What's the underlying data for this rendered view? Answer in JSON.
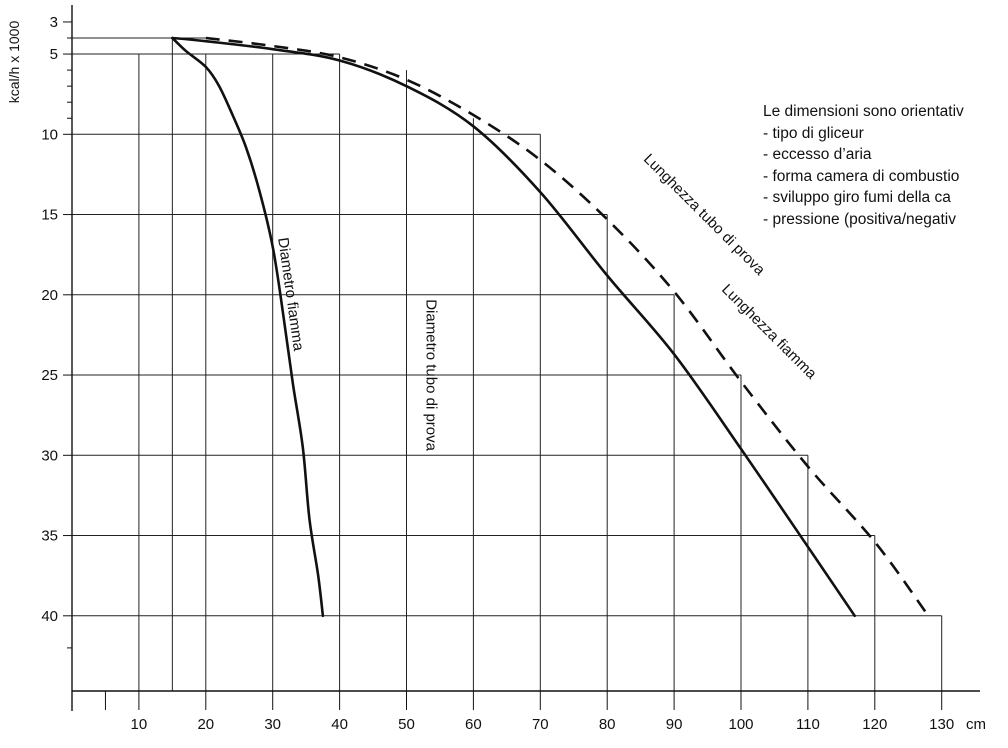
{
  "chart_data": {
    "type": "line",
    "title": "",
    "xlabel": "cm",
    "ylabel": "kcal/h x 1000",
    "xlim": [
      0,
      140
    ],
    "ylim": [
      42,
      3
    ],
    "x_ticks": [
      10,
      20,
      30,
      40,
      50,
      60,
      70,
      80,
      90,
      100,
      110,
      120,
      130
    ],
    "y_ticks": [
      3,
      5,
      10,
      15,
      20,
      25,
      30,
      35,
      40
    ],
    "y_minor_ticks": [
      4,
      6,
      7,
      8,
      9
    ],
    "grid": "stepped rectangles",
    "series": [
      {
        "name": "Diametro fiamma",
        "style": "solid",
        "points": [
          [
            15,
            4
          ],
          [
            17,
            4.8
          ],
          [
            20,
            5.8
          ],
          [
            22,
            7
          ],
          [
            24,
            8.8
          ],
          [
            26,
            10.8
          ],
          [
            28,
            13.5
          ],
          [
            30,
            17
          ],
          [
            31.5,
            21
          ],
          [
            33,
            25.5
          ],
          [
            34.5,
            29.5
          ],
          [
            35.5,
            34
          ],
          [
            36.8,
            37.5
          ],
          [
            37.5,
            40
          ]
        ]
      },
      {
        "name": "Lunghezza fiamma",
        "style": "solid",
        "points": [
          [
            15,
            4
          ],
          [
            20,
            4.2
          ],
          [
            30,
            4.7
          ],
          [
            40,
            5.4
          ],
          [
            50,
            7
          ],
          [
            60,
            9.5
          ],
          [
            70,
            13.6
          ],
          [
            80,
            18.8
          ],
          [
            90,
            23.7
          ],
          [
            100,
            29.6
          ],
          [
            110,
            35.7
          ],
          [
            117,
            40
          ]
        ]
      },
      {
        "name": "Lunghezza tubo di prova",
        "style": "dashed",
        "points": [
          [
            20,
            4
          ],
          [
            30,
            4.5
          ],
          [
            40,
            5.2
          ],
          [
            50,
            6.6
          ],
          [
            60,
            8.8
          ],
          [
            70,
            11.6
          ],
          [
            80,
            15.3
          ],
          [
            90,
            19.8
          ],
          [
            100,
            25.4
          ],
          [
            110,
            30.7
          ],
          [
            120,
            35.4
          ],
          [
            128,
            40
          ]
        ]
      }
    ],
    "steps": [
      {
        "x": 10,
        "y": 5
      },
      {
        "x": 15,
        "y": 4
      },
      {
        "x": 20,
        "y": 5
      },
      {
        "x": 30,
        "y": 5
      },
      {
        "x": 40,
        "y": 5
      },
      {
        "x": 50,
        "y": 6
      },
      {
        "x": 60,
        "y": 9
      },
      {
        "x": 70,
        "y": 10
      },
      {
        "x": 80,
        "y": 15
      },
      {
        "x": 90,
        "y": 20
      },
      {
        "x": 100,
        "y": 25
      },
      {
        "x": 110,
        "y": 30
      },
      {
        "x": 120,
        "y": 35
      },
      {
        "x": 130,
        "y": 40
      }
    ],
    "annotations": [
      {
        "text": "Diametro fiamma",
        "x": 32,
        "y": 20,
        "angle": 82
      },
      {
        "text": "Diametro tubo di prova",
        "x": 53,
        "y": 25,
        "angle": 90
      },
      {
        "text": "Lunghezza tubo di prova",
        "x": 94,
        "y": 15.2,
        "angle": 45
      },
      {
        "text": "Lunghezza fiamma",
        "x": 103.7,
        "y": 22.5,
        "angle": 45
      }
    ]
  },
  "note": {
    "lines": [
      "Le dimensioni sono orientativ",
      "- tipo di gliceur",
      "- eccesso d’aria",
      "- forma camera di combustio",
      "- sviluppo giro fumi della ca",
      "- pressione (positiva/negativ"
    ]
  }
}
